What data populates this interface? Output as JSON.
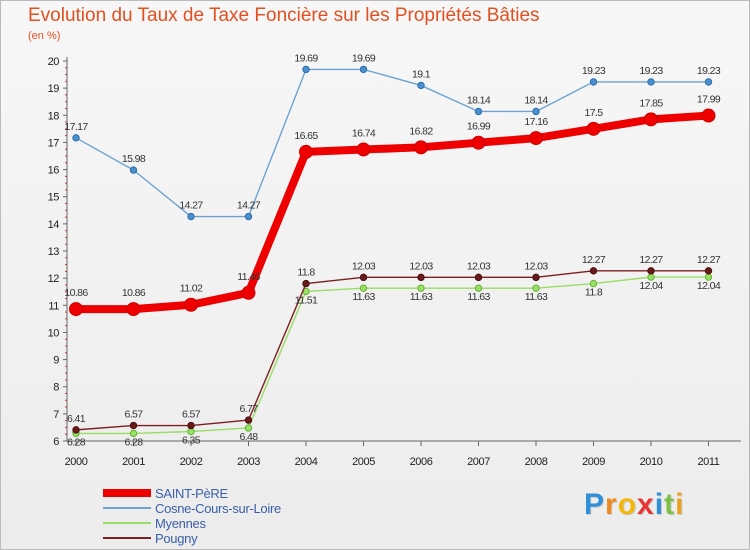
{
  "chart_data": {
    "type": "line",
    "title": "Evolution du Taux de Taxe Foncière sur les Propriétés Bâties",
    "ylabel": "(en %)",
    "categories": [
      "2000",
      "2001",
      "2002",
      "2003",
      "2004",
      "2005",
      "2006",
      "2007",
      "2008",
      "2009",
      "2010",
      "2011"
    ],
    "ylim": [
      6,
      20
    ],
    "yticks": [
      "6",
      "7",
      "8",
      "9",
      "10",
      "11",
      "12",
      "13",
      "14",
      "15",
      "16",
      "17",
      "18",
      "19",
      "20"
    ],
    "series": [
      {
        "name": "SAINT-PèRE",
        "color": "#ee0000",
        "values": [
          10.86,
          10.86,
          11.02,
          11.46,
          16.65,
          16.74,
          16.82,
          16.99,
          17.16,
          17.5,
          17.85,
          17.99
        ],
        "labels": [
          "10.86",
          "10.86",
          "11.02",
          "11.46",
          "16.65",
          "16.74",
          "16.82",
          "16.99",
          "17.16",
          "17.5",
          "17.85",
          "17.99"
        ]
      },
      {
        "name": "Cosne-Cours-sur-Loire",
        "color": "#6ea3d1",
        "values": [
          17.17,
          15.98,
          14.27,
          14.27,
          19.69,
          19.69,
          19.1,
          18.14,
          18.14,
          19.23,
          19.23,
          19.23
        ],
        "labels": [
          "17.17",
          "15.98",
          "14.27",
          "14.27",
          "19.69",
          "19.69",
          "19.1",
          "18.14",
          "18.14",
          "19.23",
          "19.23",
          "19.23"
        ]
      },
      {
        "name": "Myennes",
        "color": "#99dd66",
        "values": [
          6.28,
          6.28,
          6.35,
          6.48,
          11.51,
          11.63,
          11.63,
          11.63,
          11.63,
          11.8,
          12.04,
          12.04
        ],
        "labels": [
          "6.28",
          "6.28",
          "6.35",
          "6.48",
          "11.51",
          "11.63",
          "11.63",
          "11.63",
          "11.63",
          "11.8",
          "12.04",
          "12.04"
        ]
      },
      {
        "name": "Pougny",
        "color": "#7a2020",
        "values": [
          6.41,
          6.57,
          6.57,
          6.77,
          11.8,
          12.03,
          12.03,
          12.03,
          12.03,
          12.27,
          12.27,
          12.27
        ],
        "labels": [
          "6.41",
          "6.57",
          "6.57",
          "6.77",
          "11.8",
          "12.03",
          "12.03",
          "12.03",
          "12.03",
          "12.27",
          "12.27",
          "12.27"
        ]
      }
    ],
    "legend_position": "bottom-left",
    "grid": false
  },
  "logo": {
    "letters": [
      "P",
      "r",
      "o",
      "x",
      "i",
      "t",
      "i"
    ],
    "colors": [
      "#2f8fd8",
      "#f08a1e",
      "#f2b70a",
      "#e93434",
      "#2f8fd8",
      "#7bc043",
      "#e9a21a"
    ]
  }
}
